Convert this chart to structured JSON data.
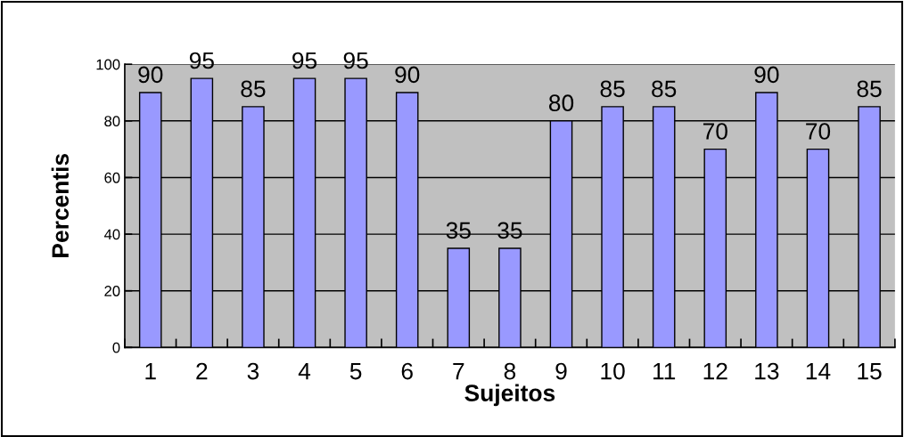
{
  "chart_data": {
    "type": "bar",
    "xlabel": "Sujeitos",
    "ylabel": "Percentis",
    "categories": [
      "1",
      "2",
      "3",
      "4",
      "5",
      "6",
      "7",
      "8",
      "9",
      "10",
      "11",
      "12",
      "13",
      "14",
      "15"
    ],
    "values": [
      90,
      95,
      85,
      95,
      95,
      90,
      35,
      35,
      80,
      85,
      85,
      70,
      90,
      70,
      85
    ],
    "color": "#9999ff",
    "ylim": [
      0,
      100
    ],
    "yticks": [
      0,
      20,
      40,
      60,
      80,
      100
    ],
    "grid": "y",
    "data_labels": true
  }
}
